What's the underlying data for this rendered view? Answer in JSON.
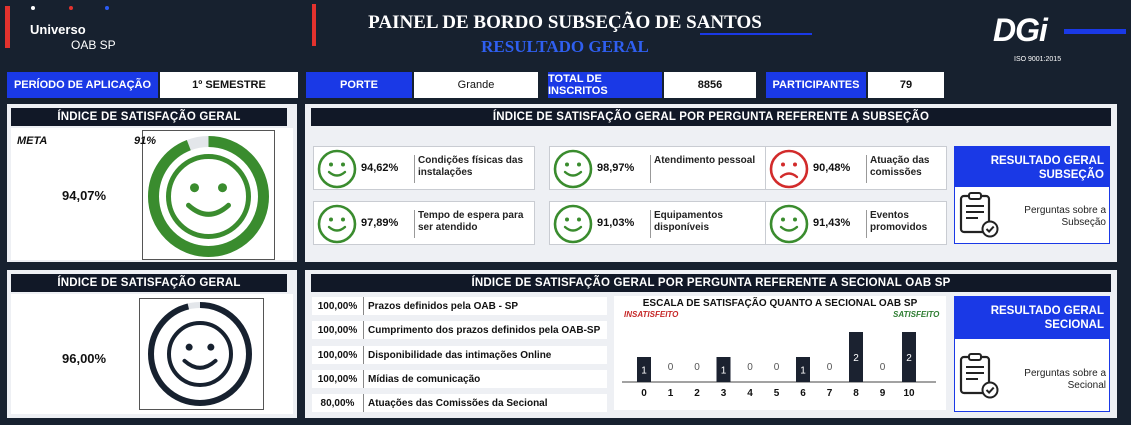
{
  "header": {
    "brand_line1": "Universo",
    "brand_line2": "OAB SP",
    "title": "PAINEL DE BORDO SUBSEÇÃO DE SANTOS",
    "subtitle": "RESULTADO GERAL",
    "logo_text": "DGi",
    "iso": "ISO 9001:2015"
  },
  "info": {
    "periodo_label": "PERÍODO DE APLICAÇÃO",
    "periodo_value": "1º SEMESTRE",
    "porte_label": "PORTE",
    "porte_value": "Grande",
    "inscritos_label": "TOTAL DE INSCRITOS",
    "inscritos_value": "8856",
    "participantes_label": "PARTICIPANTES",
    "participantes_value": "79"
  },
  "indice1": {
    "title": "ÍNDICE DE SATISFAÇÃO GERAL",
    "meta_label": "META",
    "meta_value": "91%",
    "value": "94,07%",
    "level": 0.9407,
    "color": "#3a8c2e"
  },
  "indice2": {
    "title": "ÍNDICE DE SATISFAÇÃO GERAL",
    "value": "96,00%",
    "level": 0.96,
    "color": "#17212f"
  },
  "subsecao": {
    "title": "ÍNDICE DE SATISFAÇÃO GERAL POR PERGUNTA REFERENTE A SUBSEÇÃO",
    "items": [
      {
        "value": "94,62%",
        "label": "Condições físicas das instalações",
        "mood": "happy"
      },
      {
        "value": "98,97%",
        "label": "Atendimento pessoal",
        "mood": "happy"
      },
      {
        "value": "90,48%",
        "label": "Atuação das comissões",
        "mood": "sad"
      },
      {
        "value": "97,89%",
        "label": "Tempo de espera para ser atendido",
        "mood": "happy"
      },
      {
        "value": "91,03%",
        "label": "Equipamentos disponíveis",
        "mood": "happy"
      },
      {
        "value": "91,43%",
        "label": "Eventos promovidos",
        "mood": "happy"
      }
    ],
    "result_title": "RESULTADO GERAL SUBSEÇÃO",
    "result_doc": "Perguntas sobre a Subseção",
    "happy_color": "#3a8c2e",
    "sad_color": "#d22b2b"
  },
  "seccional": {
    "title": "ÍNDICE DE SATISFAÇÃO GERAL POR PERGUNTA REFERENTE A SECIONAL OAB SP",
    "rows": [
      {
        "value": "100,00%",
        "label": "Prazos definidos pela OAB - SP"
      },
      {
        "value": "100,00%",
        "label": "Cumprimento dos prazos definidos pela OAB-SP"
      },
      {
        "value": "100,00%",
        "label": "Disponibilidade das intimações Online"
      },
      {
        "value": "100,00%",
        "label": "Mídias de comunicação"
      },
      {
        "value": "80,00%",
        "label": "Atuações das Comissões da Secional"
      }
    ],
    "result_title": "RESULTADO GERAL SECIONAL",
    "result_doc": "Perguntas sobre a Secional"
  },
  "chart_data": {
    "type": "bar",
    "title": "ESCALA DE SATISFAÇÃO QUANTO A SECIONAL OAB SP",
    "left_label": "INSATISFEITO",
    "right_label": "SATISFEITO",
    "categories": [
      "0",
      "1",
      "2",
      "3",
      "4",
      "5",
      "6",
      "7",
      "8",
      "9",
      "10"
    ],
    "values": [
      1,
      0,
      0,
      1,
      0,
      0,
      1,
      0,
      2,
      0,
      2
    ],
    "ylim": [
      0,
      2
    ],
    "grid": false,
    "bar_color": "#1b2230"
  }
}
